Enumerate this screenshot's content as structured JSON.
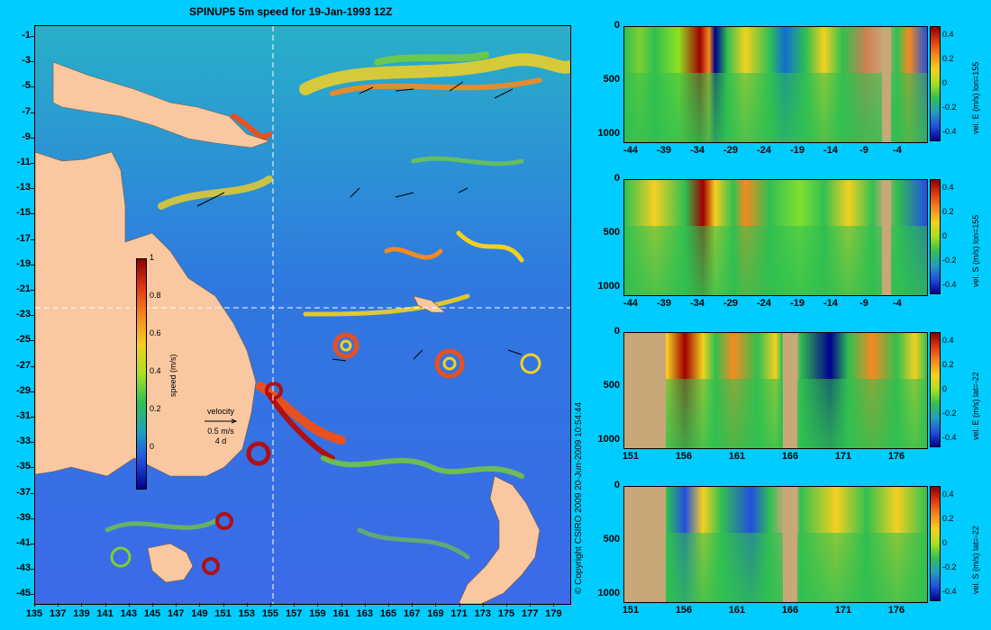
{
  "title": "SPINUP5 5m speed for 19-Jan-1993 12Z",
  "copyright": "© Copyright CSIRO 2009   20-Jun-2009 10:54:44",
  "map": {
    "lat_ticks": [
      "-1",
      "-3",
      "-5",
      "-7",
      "-9",
      "-11",
      "-13",
      "-15",
      "-17",
      "-19",
      "-21",
      "-23",
      "-25",
      "-27",
      "-29",
      "-31",
      "-33",
      "-35",
      "-37",
      "-39",
      "-41",
      "-43",
      "-45"
    ],
    "lon_ticks": [
      "135",
      "137",
      "139",
      "141",
      "143",
      "145",
      "147",
      "149",
      "151",
      "153",
      "155",
      "157",
      "159",
      "161",
      "163",
      "165",
      "167",
      "169",
      "171",
      "173",
      "175",
      "177",
      "179"
    ],
    "colorbar": {
      "ticks": [
        "1",
        "0.8",
        "0.6",
        "0.4",
        "0.2",
        "0"
      ],
      "label": "speed (m/s)"
    },
    "velocity_key": {
      "title": "velocity",
      "speed": "0.5 m/s",
      "time": "4 d"
    },
    "colors": {
      "land": "#f9c8a0",
      "ocean_low": "#2a60e8",
      "ocean_mid": "#2ab3c0",
      "frame_bg": "#00ccff"
    }
  },
  "sections": [
    {
      "id": "vel-e-lon155",
      "label": "vel. E (m/s) lon=155",
      "x_ticks": [
        "-44",
        "-39",
        "-34",
        "-29",
        "-24",
        "-19",
        "-14",
        "-9",
        "-4"
      ],
      "y_ticks": [
        "0",
        "500",
        "1000"
      ],
      "cbar_ticks": [
        "0.4",
        "0.2",
        "0",
        "-0.2",
        "-0.4"
      ]
    },
    {
      "id": "vel-s-lon155",
      "label": "vel. S (m/s) lon=155",
      "x_ticks": [
        "-44",
        "-39",
        "-34",
        "-29",
        "-24",
        "-19",
        "-14",
        "-9",
        "-4"
      ],
      "y_ticks": [
        "0",
        "500",
        "1000"
      ],
      "cbar_ticks": [
        "0.4",
        "0.2",
        "0",
        "-0.2",
        "-0.4"
      ]
    },
    {
      "id": "vel-e-lat-22",
      "label": "vel. E (m/s) lat=-22",
      "x_ticks": [
        "151",
        "156",
        "161",
        "166",
        "171",
        "176"
      ],
      "y_ticks": [
        "0",
        "500",
        "1000"
      ],
      "cbar_ticks": [
        "0.4",
        "0.2",
        "0",
        "-0.2",
        "-0.4"
      ]
    },
    {
      "id": "vel-s-lat-22",
      "label": "vel. S (m/s) lat=-22",
      "x_ticks": [
        "151",
        "156",
        "161",
        "166",
        "171",
        "176"
      ],
      "y_ticks": [
        "0",
        "500",
        "1000"
      ],
      "cbar_ticks": [
        "0.4",
        "0.2",
        "0",
        "-0.2",
        "-0.4"
      ]
    }
  ]
}
